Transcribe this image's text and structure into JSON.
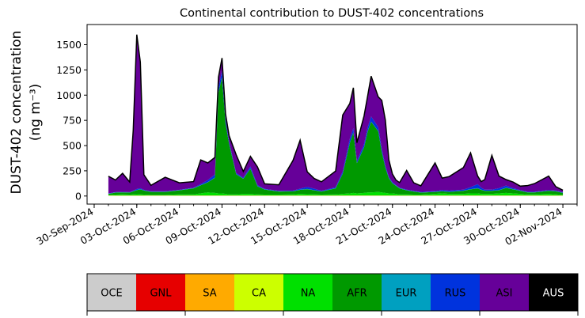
{
  "chart_data": {
    "type": "area",
    "title": "Continental contribution to DUST-402 concentrations",
    "ylabel_line1": "DUST-402 concentration",
    "ylabel_line2": "(ng m⁻³)",
    "xlabel": "",
    "ylim": [
      -80,
      1700
    ],
    "xlim": [
      "2024-09-29T12:00",
      "2024-11-03T00:00"
    ],
    "y_ticks": [
      0,
      250,
      500,
      750,
      1000,
      1250,
      1500
    ],
    "x_ticks": [
      "30-Sep-2024",
      "03-Oct-2024",
      "06-Oct-2024",
      "09-Oct-2024",
      "12-Oct-2024",
      "15-Oct-2024",
      "18-Oct-2024",
      "21-Oct-2024",
      "24-Oct-2024",
      "27-Oct-2024",
      "30-Oct-2024",
      "02-Nov-2024"
    ],
    "x_tick_dates": [
      "2024-09-30",
      "2024-10-03",
      "2024-10-06",
      "2024-10-09",
      "2024-10-12",
      "2024-10-15",
      "2024-10-18",
      "2024-10-21",
      "2024-10-24",
      "2024-10-27",
      "2024-10-30",
      "2024-11-02"
    ],
    "grid": false,
    "legend_placement": "bottom colorbar",
    "total_line_color": "#000000",
    "x": [
      "2024-10-01T00:00",
      "2024-10-01T12:00",
      "2024-10-02T00:00",
      "2024-10-02T12:00",
      "2024-10-02T18:00",
      "2024-10-03T00:00",
      "2024-10-03T06:00",
      "2024-10-03T12:00",
      "2024-10-04T00:00",
      "2024-10-05T00:00",
      "2024-10-06T00:00",
      "2024-10-07T00:00",
      "2024-10-07T12:00",
      "2024-10-08T00:00",
      "2024-10-08T12:00",
      "2024-10-08T18:00",
      "2024-10-09T00:00",
      "2024-10-09T06:00",
      "2024-10-09T12:00",
      "2024-10-10T00:00",
      "2024-10-10T12:00",
      "2024-10-11T00:00",
      "2024-10-11T12:00",
      "2024-10-12T00:00",
      "2024-10-13T00:00",
      "2024-10-14T00:00",
      "2024-10-14T12:00",
      "2024-10-15T00:00",
      "2024-10-15T12:00",
      "2024-10-16T00:00",
      "2024-10-17T00:00",
      "2024-10-17T12:00",
      "2024-10-18T00:00",
      "2024-10-18T06:00",
      "2024-10-18T12:00",
      "2024-10-19T00:00",
      "2024-10-19T06:00",
      "2024-10-19T12:00",
      "2024-10-20T00:00",
      "2024-10-20T06:00",
      "2024-10-20T12:00",
      "2024-10-20T18:00",
      "2024-10-21T00:00",
      "2024-10-21T06:00",
      "2024-10-21T12:00",
      "2024-10-22T00:00",
      "2024-10-22T12:00",
      "2024-10-23T00:00",
      "2024-10-24T00:00",
      "2024-10-24T12:00",
      "2024-10-25T00:00",
      "2024-10-26T00:00",
      "2024-10-26T12:00",
      "2024-10-27T00:00",
      "2024-10-27T06:00",
      "2024-10-27T12:00",
      "2024-10-28T00:00",
      "2024-10-28T12:00",
      "2024-10-29T00:00",
      "2024-10-29T12:00",
      "2024-10-30T00:00",
      "2024-10-30T12:00",
      "2024-10-31T00:00",
      "2024-11-01T00:00",
      "2024-11-01T12:00",
      "2024-11-02T00:00"
    ],
    "series": [
      {
        "name": "OCE",
        "color": "#cccccc",
        "values": [
          2,
          2,
          2,
          2,
          2,
          2,
          2,
          2,
          2,
          2,
          2,
          2,
          2,
          2,
          2,
          2,
          2,
          2,
          2,
          2,
          2,
          2,
          2,
          2,
          2,
          2,
          2,
          2,
          2,
          2,
          2,
          2,
          2,
          2,
          2,
          2,
          2,
          2,
          2,
          2,
          2,
          2,
          2,
          2,
          2,
          2,
          2,
          2,
          2,
          2,
          2,
          2,
          2,
          2,
          2,
          2,
          2,
          2,
          2,
          2,
          2,
          2,
          2,
          2,
          2,
          2
        ]
      },
      {
        "name": "GNL",
        "color": "#e60000",
        "values": [
          1,
          1,
          1,
          1,
          1,
          1,
          1,
          1,
          1,
          1,
          1,
          1,
          1,
          1,
          1,
          1,
          1,
          1,
          1,
          1,
          1,
          1,
          1,
          1,
          1,
          1,
          1,
          1,
          1,
          1,
          1,
          1,
          1,
          1,
          1,
          1,
          1,
          1,
          1,
          1,
          1,
          1,
          1,
          1,
          1,
          1,
          1,
          1,
          1,
          1,
          1,
          1,
          1,
          1,
          1,
          1,
          1,
          1,
          1,
          1,
          1,
          1,
          1,
          1,
          1,
          1
        ]
      },
      {
        "name": "SA",
        "color": "#ffaa00",
        "values": [
          1,
          1,
          1,
          1,
          1,
          1,
          1,
          1,
          1,
          1,
          1,
          1,
          1,
          1,
          1,
          1,
          1,
          1,
          1,
          1,
          1,
          1,
          1,
          1,
          1,
          1,
          1,
          1,
          1,
          1,
          1,
          1,
          1,
          1,
          1,
          1,
          1,
          1,
          1,
          1,
          1,
          1,
          1,
          1,
          1,
          1,
          1,
          1,
          1,
          1,
          1,
          1,
          1,
          1,
          1,
          1,
          1,
          1,
          1,
          1,
          1,
          1,
          1,
          1,
          1,
          1
        ]
      },
      {
        "name": "CA",
        "color": "#ccff00",
        "values": [
          2,
          2,
          2,
          2,
          2,
          2,
          2,
          2,
          2,
          2,
          2,
          2,
          2,
          2,
          2,
          2,
          2,
          2,
          2,
          2,
          2,
          2,
          2,
          2,
          2,
          2,
          2,
          2,
          2,
          2,
          2,
          2,
          2,
          2,
          2,
          2,
          2,
          2,
          2,
          2,
          2,
          2,
          2,
          2,
          2,
          2,
          2,
          2,
          2,
          2,
          2,
          2,
          2,
          2,
          2,
          2,
          2,
          2,
          2,
          2,
          2,
          2,
          2,
          2,
          2,
          2
        ]
      },
      {
        "name": "NA",
        "color": "#00e000",
        "values": [
          5,
          8,
          10,
          8,
          10,
          12,
          10,
          8,
          5,
          5,
          10,
          10,
          20,
          30,
          25,
          20,
          20,
          15,
          10,
          10,
          15,
          15,
          10,
          8,
          8,
          10,
          15,
          12,
          10,
          8,
          10,
          15,
          20,
          25,
          20,
          25,
          30,
          30,
          35,
          30,
          25,
          20,
          20,
          15,
          10,
          10,
          8,
          8,
          15,
          20,
          15,
          15,
          20,
          20,
          15,
          15,
          15,
          20,
          25,
          20,
          15,
          10,
          10,
          15,
          10,
          5
        ]
      },
      {
        "name": "AFR",
        "color": "#009900",
        "values": [
          10,
          20,
          20,
          20,
          30,
          40,
          50,
          40,
          30,
          30,
          40,
          60,
          80,
          100,
          150,
          1000,
          1150,
          700,
          500,
          200,
          150,
          250,
          80,
          50,
          30,
          30,
          40,
          50,
          40,
          30,
          60,
          200,
          500,
          600,
          300,
          450,
          600,
          700,
          600,
          400,
          250,
          150,
          100,
          80,
          60,
          40,
          30,
          20,
          20,
          20,
          20,
          30,
          40,
          50,
          40,
          30,
          30,
          30,
          50,
          40,
          30,
          20,
          20,
          30,
          30,
          20
        ]
      },
      {
        "name": "EUR",
        "color": "#00a0c0",
        "values": [
          2,
          2,
          2,
          2,
          2,
          2,
          2,
          2,
          2,
          2,
          2,
          2,
          2,
          2,
          2,
          2,
          2,
          2,
          2,
          2,
          2,
          2,
          2,
          2,
          2,
          2,
          2,
          2,
          2,
          2,
          2,
          2,
          2,
          2,
          2,
          2,
          2,
          2,
          2,
          2,
          2,
          2,
          2,
          2,
          2,
          2,
          2,
          2,
          2,
          2,
          2,
          2,
          2,
          2,
          2,
          2,
          2,
          2,
          2,
          2,
          2,
          2,
          2,
          2,
          2,
          2
        ]
      },
      {
        "name": "RUS",
        "color": "#0033dd",
        "values": [
          3,
          3,
          3,
          3,
          5,
          10,
          10,
          5,
          3,
          3,
          3,
          5,
          10,
          20,
          30,
          50,
          60,
          40,
          20,
          10,
          10,
          20,
          10,
          5,
          5,
          5,
          10,
          20,
          15,
          5,
          10,
          20,
          40,
          40,
          20,
          30,
          40,
          50,
          40,
          30,
          20,
          10,
          10,
          5,
          5,
          5,
          5,
          5,
          5,
          10,
          10,
          10,
          20,
          40,
          20,
          10,
          10,
          20,
          20,
          10,
          5,
          5,
          5,
          5,
          5,
          5
        ]
      },
      {
        "name": "ASI",
        "color": "#660099",
        "values": [
          170,
          120,
          184,
          100,
          600,
          1530,
          1250,
          150,
          60,
          140,
          70,
          60,
          240,
          170,
          170,
          100,
          130,
          50,
          60,
          180,
          60,
          100,
          180,
          50,
          60,
          300,
          480,
          150,
          100,
          90,
          160,
          560,
          350,
          400,
          180,
          280,
          310,
          400,
          300,
          480,
          450,
          170,
          80,
          50,
          50,
          190,
          80,
          60,
          280,
          120,
          140,
          220,
          340,
          80,
          60,
          100,
          340,
          120,
          60,
          60,
          40,
          60,
          80,
          140,
          40,
          20
        ]
      },
      {
        "name": "AUS",
        "color": "#000000",
        "values": [
          0,
          0,
          0,
          0,
          0,
          0,
          0,
          0,
          0,
          0,
          0,
          0,
          0,
          0,
          0,
          0,
          0,
          0,
          0,
          0,
          0,
          0,
          0,
          0,
          0,
          0,
          0,
          0,
          0,
          0,
          0,
          0,
          0,
          0,
          0,
          0,
          0,
          0,
          0,
          0,
          0,
          0,
          0,
          0,
          0,
          0,
          0,
          0,
          0,
          0,
          0,
          0,
          0,
          0,
          0,
          0,
          0,
          0,
          0,
          0,
          0,
          0,
          0,
          0,
          0,
          0
        ]
      }
    ]
  }
}
